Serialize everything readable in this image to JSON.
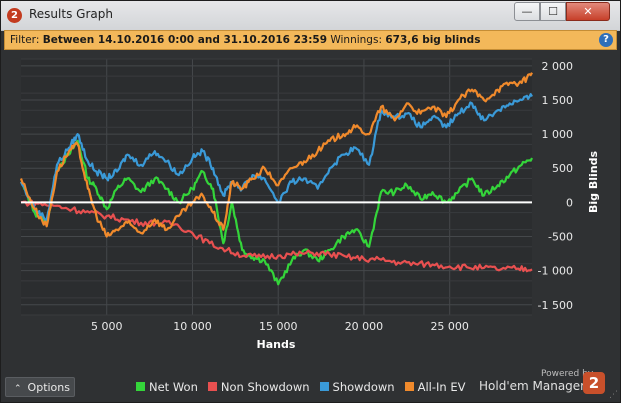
{
  "window": {
    "title": "Results Graph",
    "badge": "2",
    "buttons": {
      "minimize": "—",
      "maximize": "☐",
      "close": "✕"
    }
  },
  "filter": {
    "label": "Filter:",
    "range": "Between 14.10.2016 0:00 and 31.10.2016 23:59",
    "winnings_label": "Winnings:",
    "winnings_value": "673,6 big blinds",
    "help_glyph": "?"
  },
  "options": {
    "label": "Options",
    "icon": "chevron-up-icon"
  },
  "branding": {
    "powered_by": "Powered by",
    "name": "Hold'em Manager",
    "logo_text": "2"
  },
  "chart_data": {
    "type": "line",
    "xlabel": "Hands",
    "ylabel": "Big Blinds",
    "xlim": [
      0,
      29800
    ],
    "ylim": [
      -1650,
      2100
    ],
    "xticks": [
      5000,
      10000,
      15000,
      20000,
      25000
    ],
    "xtick_labels": [
      "5 000",
      "10 000",
      "15 000",
      "20 000",
      "25 000"
    ],
    "yticks": [
      2000,
      1500,
      1000,
      500,
      0,
      -500,
      -1000,
      -1500
    ],
    "ytick_labels": [
      "2 000",
      "1 500",
      "1 000",
      "500",
      "0",
      "-500",
      "-1 000",
      "-1 500"
    ],
    "grid": true,
    "legend_position": "bottom",
    "series": [
      {
        "name": "Net Won",
        "color": "#34d53a",
        "x": [
          0,
          800,
          1500,
          2100,
          2800,
          3300,
          3900,
          4400,
          5000,
          5600,
          6200,
          7000,
          7800,
          8500,
          9200,
          10000,
          10600,
          11200,
          11800,
          12300,
          12900,
          13500,
          14200,
          15000,
          15800,
          16500,
          17300,
          18000,
          18800,
          19500,
          20300,
          21000,
          21800,
          22500,
          23300,
          24000,
          24800,
          25500,
          26300,
          27000,
          27800,
          28500,
          29200,
          29800
        ],
        "y": [
          300,
          -150,
          -300,
          500,
          700,
          900,
          350,
          200,
          -100,
          200,
          350,
          150,
          350,
          200,
          0,
          200,
          450,
          200,
          -600,
          0,
          -700,
          -800,
          -850,
          -1200,
          -850,
          -700,
          -850,
          -700,
          -500,
          -400,
          -650,
          150,
          150,
          250,
          50,
          150,
          0,
          150,
          350,
          100,
          250,
          400,
          550,
          650
        ]
      },
      {
        "name": "Non Showdown",
        "color": "#e85050",
        "x": [
          0,
          1000,
          2000,
          3000,
          4000,
          5000,
          6000,
          7000,
          8000,
          9000,
          10000,
          11000,
          12000,
          13000,
          14000,
          15000,
          16000,
          17000,
          18000,
          19000,
          20000,
          21000,
          22000,
          23000,
          24000,
          25000,
          26000,
          27000,
          28000,
          29000,
          29800
        ],
        "y": [
          0,
          -20,
          -50,
          -100,
          -150,
          -200,
          -250,
          -300,
          -300,
          -320,
          -450,
          -600,
          -700,
          -780,
          -800,
          -780,
          -760,
          -740,
          -760,
          -800,
          -830,
          -840,
          -880,
          -900,
          -910,
          -940,
          -950,
          -960,
          -980,
          -970,
          -980
        ]
      },
      {
        "name": "Showdown",
        "color": "#3a9ad8",
        "x": [
          0,
          800,
          1500,
          2100,
          2800,
          3300,
          3900,
          4400,
          5000,
          5600,
          6200,
          7000,
          7800,
          8500,
          9200,
          10000,
          10600,
          11200,
          11800,
          12300,
          12900,
          13500,
          14200,
          15000,
          15800,
          16500,
          17300,
          18000,
          18800,
          19500,
          20300,
          21000,
          21800,
          22500,
          23300,
          24000,
          24800,
          25500,
          26300,
          27000,
          27800,
          28500,
          29200,
          29800
        ],
        "y": [
          300,
          -100,
          -250,
          550,
          800,
          1000,
          600,
          450,
          350,
          450,
          700,
          550,
          750,
          600,
          400,
          650,
          750,
          500,
          100,
          300,
          200,
          400,
          350,
          0,
          300,
          350,
          200,
          500,
          700,
          800,
          550,
          1350,
          1250,
          1300,
          1100,
          1250,
          1100,
          1300,
          1450,
          1200,
          1350,
          1450,
          1500,
          1550
        ]
      },
      {
        "name": "All-In EV",
        "color": "#f08a2c",
        "x": [
          0,
          800,
          1500,
          2100,
          2800,
          3300,
          3900,
          4400,
          5000,
          5600,
          6200,
          7000,
          7800,
          8500,
          9200,
          10000,
          10600,
          11200,
          11800,
          12300,
          12900,
          13500,
          14200,
          15000,
          15800,
          16500,
          17300,
          18000,
          18800,
          19500,
          20300,
          21000,
          21800,
          22500,
          23300,
          24000,
          24800,
          25500,
          26300,
          27000,
          27800,
          28500,
          29200,
          29800
        ],
        "y": [
          350,
          -100,
          -350,
          450,
          750,
          850,
          200,
          -200,
          -500,
          -400,
          -300,
          -450,
          -250,
          -400,
          -200,
          0,
          100,
          -150,
          -400,
          300,
          200,
          350,
          500,
          250,
          500,
          600,
          750,
          900,
          1000,
          1100,
          1000,
          1400,
          1200,
          1450,
          1300,
          1400,
          1250,
          1500,
          1650,
          1500,
          1650,
          1750,
          1750,
          1900
        ]
      }
    ]
  }
}
